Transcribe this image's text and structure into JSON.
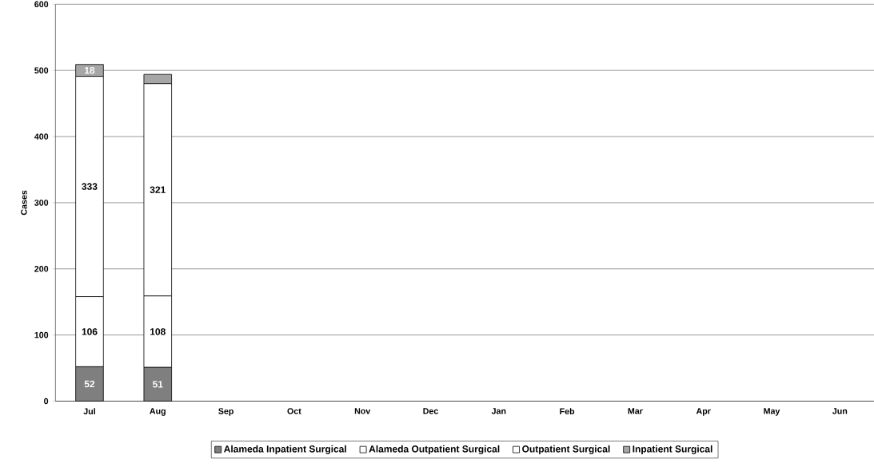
{
  "chart_data": {
    "type": "bar",
    "stacked": true,
    "ylabel": "Cases",
    "categories": [
      "Jul",
      "Aug",
      "Sep",
      "Oct",
      "Nov",
      "Dec",
      "Jan",
      "Feb",
      "Mar",
      "Apr",
      "May",
      "Jun"
    ],
    "series": [
      {
        "name": "Alameda Inpatient Surgical",
        "color": "#7f7f7f",
        "values": [
          52,
          51,
          null,
          null,
          null,
          null,
          null,
          null,
          null,
          null,
          null,
          null
        ],
        "value_labels": [
          "52",
          "51",
          null,
          null,
          null,
          null,
          null,
          null,
          null,
          null,
          null,
          null
        ]
      },
      {
        "name": "Alameda Outpatient Surgical",
        "color": "#ffffff",
        "values": [
          106,
          108,
          null,
          null,
          null,
          null,
          null,
          null,
          null,
          null,
          null,
          null
        ],
        "value_labels": [
          "106",
          "108",
          null,
          null,
          null,
          null,
          null,
          null,
          null,
          null,
          null,
          null
        ]
      },
      {
        "name": "Outpatient Surgical",
        "color": "#ffffff",
        "values": [
          333,
          321,
          null,
          null,
          null,
          null,
          null,
          null,
          null,
          null,
          null,
          null
        ],
        "value_labels": [
          "333",
          "321",
          null,
          null,
          null,
          null,
          null,
          null,
          null,
          null,
          null,
          null
        ]
      },
      {
        "name": "Inpatient Surgical",
        "color": "#a6a6a6",
        "values": [
          18,
          14,
          null,
          null,
          null,
          null,
          null,
          null,
          null,
          null,
          null,
          null
        ],
        "value_labels": [
          "18",
          null,
          null,
          null,
          null,
          null,
          null,
          null,
          null,
          null,
          null,
          null
        ]
      }
    ],
    "ylim": [
      0,
      600
    ],
    "yticks": [
      0,
      100,
      200,
      300,
      400,
      500,
      600
    ],
    "grid": "y",
    "legend": "bottom"
  }
}
